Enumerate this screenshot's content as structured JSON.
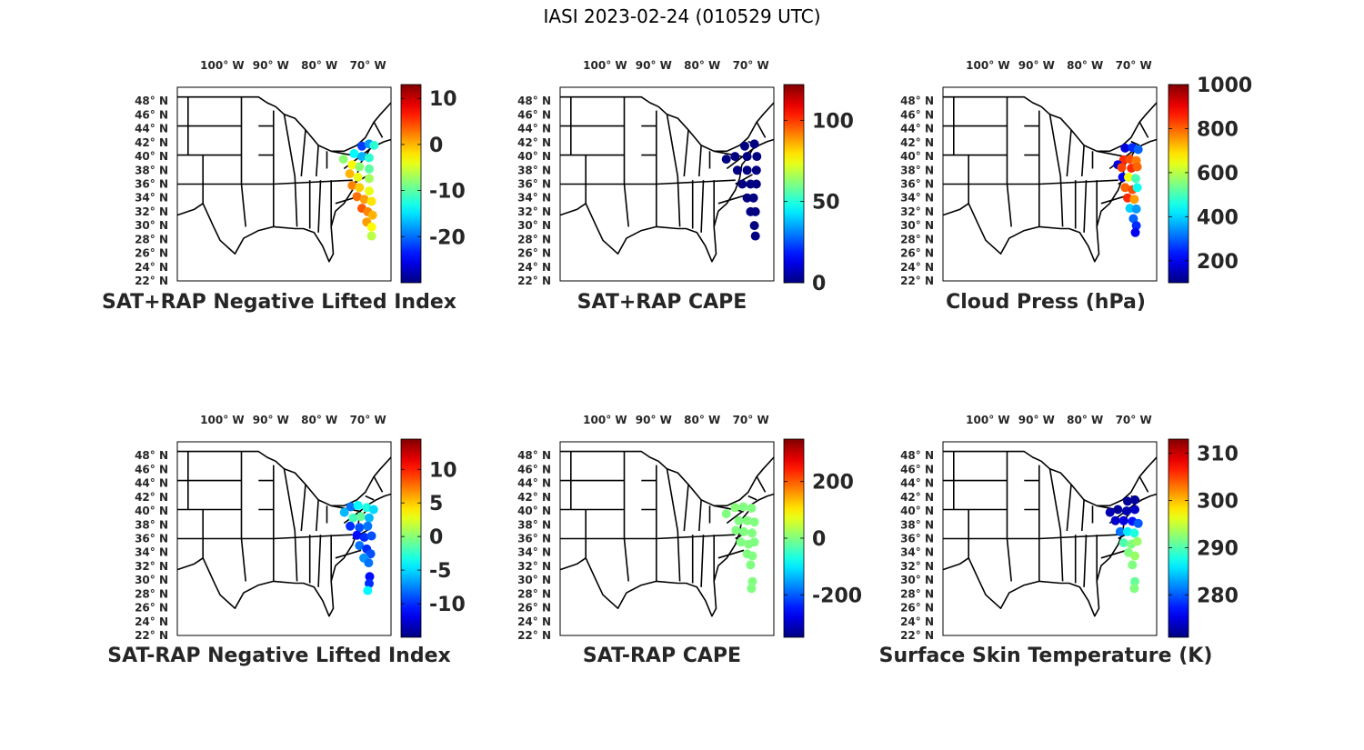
{
  "figure": {
    "title": "IASI 2023-02-24 (010529 UTC)"
  },
  "map": {
    "lon_ticks": [
      {
        "deg": "100",
        "dir": "W"
      },
      {
        "deg": "90",
        "dir": "W"
      },
      {
        "deg": "80",
        "dir": "W"
      },
      {
        "deg": "70",
        "dir": "W"
      }
    ],
    "lat_ticks": [
      {
        "deg": "48",
        "dir": "N"
      },
      {
        "deg": "46",
        "dir": "N"
      },
      {
        "deg": "44",
        "dir": "N"
      },
      {
        "deg": "42",
        "dir": "N"
      },
      {
        "deg": "40",
        "dir": "N"
      },
      {
        "deg": "38",
        "dir": "N"
      },
      {
        "deg": "36",
        "dir": "N"
      },
      {
        "deg": "34",
        "dir": "N"
      },
      {
        "deg": "32",
        "dir": "N"
      },
      {
        "deg": "30",
        "dir": "N"
      },
      {
        "deg": "28",
        "dir": "N"
      },
      {
        "deg": "26",
        "dir": "N"
      },
      {
        "deg": "24",
        "dir": "N"
      },
      {
        "deg": "22",
        "dir": "N"
      }
    ],
    "degree_symbol": "°"
  },
  "colors": {
    "colormap": "jet",
    "map_outline": "#000000",
    "text": "#262626"
  },
  "chart_data": [
    {
      "type": "scatter",
      "title": "SAT+RAP Negative Lifted Index",
      "colorbar": {
        "range": [
          -30,
          13
        ],
        "ticks": [
          "10",
          "0",
          "-10",
          "-20"
        ],
        "tick_values": [
          10,
          0,
          -10,
          -20
        ]
      },
      "points_summary": "swath off US east coast; values mostly -20 to 0",
      "points": [
        {
          "lon": -72,
          "lat": 41.5,
          "v": -22
        },
        {
          "lon": -70.5,
          "lat": 41.8,
          "v": -18
        },
        {
          "lon": -69.5,
          "lat": 41.6,
          "v": -12
        },
        {
          "lon": -73.6,
          "lat": 40.4,
          "v": -14
        },
        {
          "lon": -72,
          "lat": 40,
          "v": -17
        },
        {
          "lon": -70.5,
          "lat": 39.8,
          "v": -12
        },
        {
          "lon": -74,
          "lat": 38.8,
          "v": -3
        },
        {
          "lon": -72.5,
          "lat": 38.5,
          "v": -8
        },
        {
          "lon": -70.5,
          "lat": 38.2,
          "v": -10
        },
        {
          "lon": -74.5,
          "lat": 37.5,
          "v": 0
        },
        {
          "lon": -72.8,
          "lat": 37,
          "v": -4
        },
        {
          "lon": -70.5,
          "lat": 36.8,
          "v": -7
        },
        {
          "lon": -74,
          "lat": 35.8,
          "v": 2
        },
        {
          "lon": -72.5,
          "lat": 35.5,
          "v": -1
        },
        {
          "lon": -70.5,
          "lat": 35,
          "v": -4
        },
        {
          "lon": -73,
          "lat": 34.2,
          "v": 3
        },
        {
          "lon": -71.5,
          "lat": 33.8,
          "v": 1
        },
        {
          "lon": -70,
          "lat": 33.5,
          "v": -2
        },
        {
          "lon": -72,
          "lat": 32.5,
          "v": 4
        },
        {
          "lon": -70.8,
          "lat": 32,
          "v": 2
        },
        {
          "lon": -69.8,
          "lat": 31.5,
          "v": 0
        },
        {
          "lon": -71,
          "lat": 30.5,
          "v": 1
        },
        {
          "lon": -70,
          "lat": 29.8,
          "v": -3
        },
        {
          "lon": -70,
          "lat": 28.5,
          "v": -6
        },
        {
          "lon": -75.8,
          "lat": 39.6,
          "v": -8
        }
      ]
    },
    {
      "type": "scatter",
      "title": "SAT+RAP CAPE",
      "colorbar": {
        "range": [
          0,
          122
        ],
        "ticks": [
          "100",
          "50",
          "0"
        ],
        "tick_values": [
          100,
          50,
          0
        ]
      },
      "points_summary": "swath values near 0",
      "points": [
        {
          "lon": -72,
          "lat": 41.5,
          "v": 0
        },
        {
          "lon": -70,
          "lat": 41.8,
          "v": 0
        },
        {
          "lon": -74,
          "lat": 40,
          "v": 0
        },
        {
          "lon": -71.5,
          "lat": 40,
          "v": 0
        },
        {
          "lon": -69.5,
          "lat": 40,
          "v": 0
        },
        {
          "lon": -73.5,
          "lat": 38,
          "v": 0
        },
        {
          "lon": -71.5,
          "lat": 38,
          "v": 0
        },
        {
          "lon": -69.6,
          "lat": 38,
          "v": 0
        },
        {
          "lon": -72.5,
          "lat": 36,
          "v": 0
        },
        {
          "lon": -70.8,
          "lat": 36,
          "v": 0
        },
        {
          "lon": -69.6,
          "lat": 36,
          "v": 0
        },
        {
          "lon": -71.5,
          "lat": 34,
          "v": 0
        },
        {
          "lon": -70.2,
          "lat": 34,
          "v": 0
        },
        {
          "lon": -70.8,
          "lat": 32,
          "v": 0
        },
        {
          "lon": -69.8,
          "lat": 32,
          "v": 0
        },
        {
          "lon": -70,
          "lat": 30,
          "v": 0
        },
        {
          "lon": -69.8,
          "lat": 28.5,
          "v": 0
        },
        {
          "lon": -75.8,
          "lat": 39.6,
          "v": 0
        }
      ]
    },
    {
      "type": "scatter",
      "title": "Cloud Press (hPa)",
      "colorbar": {
        "range": [
          100,
          1000
        ],
        "ticks": [
          "1000",
          "800",
          "600",
          "400",
          "200"
        ],
        "tick_values": [
          1000,
          800,
          600,
          400,
          200
        ]
      },
      "points_summary": "cloudy points off coast; 200–850 hPa",
      "points": [
        {
          "lon": -72.5,
          "lat": 41.2,
          "v": 180
        },
        {
          "lon": -71,
          "lat": 41.3,
          "v": 250
        },
        {
          "lon": -69.8,
          "lat": 41,
          "v": 300
        },
        {
          "lon": -72.8,
          "lat": 39.5,
          "v": 850
        },
        {
          "lon": -71.5,
          "lat": 39.6,
          "v": 820
        },
        {
          "lon": -70.2,
          "lat": 39.4,
          "v": 780
        },
        {
          "lon": -74,
          "lat": 38.8,
          "v": 180
        },
        {
          "lon": -73.2,
          "lat": 38.4,
          "v": 830
        },
        {
          "lon": -71.2,
          "lat": 38.3,
          "v": 850
        },
        {
          "lon": -70,
          "lat": 38.5,
          "v": 800
        },
        {
          "lon": -73,
          "lat": 37,
          "v": 200
        },
        {
          "lon": -71.8,
          "lat": 37,
          "v": 650
        },
        {
          "lon": -70.3,
          "lat": 36.8,
          "v": 500
        },
        {
          "lon": -72.5,
          "lat": 35.5,
          "v": 800
        },
        {
          "lon": -71,
          "lat": 35.2,
          "v": 820
        },
        {
          "lon": -70,
          "lat": 35.5,
          "v": 450
        },
        {
          "lon": -72,
          "lat": 34,
          "v": 850
        },
        {
          "lon": -70.6,
          "lat": 33.8,
          "v": 750
        },
        {
          "lon": -71.5,
          "lat": 32.5,
          "v": 400
        },
        {
          "lon": -70.2,
          "lat": 32.4,
          "v": 350
        },
        {
          "lon": -70.8,
          "lat": 31,
          "v": 300
        },
        {
          "lon": -70.2,
          "lat": 30,
          "v": 250
        },
        {
          "lon": -70.4,
          "lat": 29,
          "v": 200
        }
      ]
    },
    {
      "type": "scatter",
      "title": "SAT-RAP Negative Lifted Index",
      "colorbar": {
        "range": [
          -15,
          14.5
        ],
        "ticks": [
          "10",
          "5",
          "0",
          "-5",
          "-10"
        ],
        "tick_values": [
          10,
          5,
          0,
          -5,
          -10
        ]
      },
      "points_summary": "differences mostly -10 to 0",
      "points": [
        {
          "lon": -74.3,
          "lat": 40.6,
          "v": -8
        },
        {
          "lon": -72.8,
          "lat": 40.8,
          "v": -4
        },
        {
          "lon": -71,
          "lat": 40.5,
          "v": -3
        },
        {
          "lon": -69.6,
          "lat": 40.2,
          "v": -5
        },
        {
          "lon": -73.8,
          "lat": 39,
          "v": -2
        },
        {
          "lon": -72.2,
          "lat": 39.2,
          "v": -1
        },
        {
          "lon": -70.5,
          "lat": 39,
          "v": -6
        },
        {
          "lon": -74.4,
          "lat": 37.8,
          "v": -10
        },
        {
          "lon": -72.5,
          "lat": 37.6,
          "v": -9
        },
        {
          "lon": -70.8,
          "lat": 37.8,
          "v": -8
        },
        {
          "lon": -73,
          "lat": 36.5,
          "v": -11
        },
        {
          "lon": -71.5,
          "lat": 36.2,
          "v": -10
        },
        {
          "lon": -70,
          "lat": 36.4,
          "v": -9
        },
        {
          "lon": -72.5,
          "lat": 35,
          "v": -8
        },
        {
          "lon": -71,
          "lat": 34.5,
          "v": -10
        },
        {
          "lon": -70.2,
          "lat": 33.8,
          "v": -9
        },
        {
          "lon": -71.6,
          "lat": 33.2,
          "v": -7
        },
        {
          "lon": -70.6,
          "lat": 32.5,
          "v": -8
        },
        {
          "lon": -70.4,
          "lat": 30.5,
          "v": -11
        },
        {
          "lon": -70.5,
          "lat": 29.5,
          "v": -10
        },
        {
          "lon": -70.8,
          "lat": 28.5,
          "v": -4
        },
        {
          "lon": -75.6,
          "lat": 39.8,
          "v": -6
        }
      ]
    },
    {
      "type": "scatter",
      "title": "SAT-RAP CAPE",
      "colorbar": {
        "range": [
          -350,
          350
        ],
        "ticks": [
          "200",
          "0",
          "-200"
        ],
        "tick_values": [
          200,
          0,
          -200
        ]
      },
      "points_summary": "differences near 0",
      "points": [
        {
          "lon": -74,
          "lat": 40.5,
          "v": 5
        },
        {
          "lon": -72.3,
          "lat": 40.6,
          "v": 0
        },
        {
          "lon": -70.6,
          "lat": 40.4,
          "v": 0
        },
        {
          "lon": -73.2,
          "lat": 38.6,
          "v": 0
        },
        {
          "lon": -71.5,
          "lat": 38.6,
          "v": 0
        },
        {
          "lon": -70,
          "lat": 38.4,
          "v": 0
        },
        {
          "lon": -73.8,
          "lat": 37.2,
          "v": 0
        },
        {
          "lon": -72.2,
          "lat": 37,
          "v": 0
        },
        {
          "lon": -70.5,
          "lat": 36.8,
          "v": 0
        },
        {
          "lon": -72.8,
          "lat": 35.5,
          "v": 0
        },
        {
          "lon": -71.2,
          "lat": 35.2,
          "v": 0
        },
        {
          "lon": -70,
          "lat": 35.5,
          "v": 0
        },
        {
          "lon": -71.5,
          "lat": 33.8,
          "v": 0
        },
        {
          "lon": -70.4,
          "lat": 33.5,
          "v": 0
        },
        {
          "lon": -70.8,
          "lat": 32.2,
          "v": 0
        },
        {
          "lon": -70.4,
          "lat": 29.8,
          "v": 0
        },
        {
          "lon": -70.6,
          "lat": 28.8,
          "v": 0
        },
        {
          "lon": -75.8,
          "lat": 39.6,
          "v": 0
        }
      ]
    },
    {
      "type": "scatter",
      "title": "Surface Skin Temperature (K)",
      "colorbar": {
        "range": [
          271,
          313
        ],
        "ticks": [
          "310",
          "300",
          "290",
          "280"
        ],
        "tick_values": [
          310,
          300,
          290,
          280
        ]
      },
      "points_summary": "cold (~272 K) near coast in north, ~292 K in south",
      "points": [
        {
          "lon": -72,
          "lat": 41.4,
          "v": 272
        },
        {
          "lon": -70.5,
          "lat": 41.6,
          "v": 272
        },
        {
          "lon": -74,
          "lat": 40.2,
          "v": 272
        },
        {
          "lon": -72.2,
          "lat": 40,
          "v": 273
        },
        {
          "lon": -70.5,
          "lat": 40.2,
          "v": 274
        },
        {
          "lon": -74.5,
          "lat": 38.6,
          "v": 274
        },
        {
          "lon": -72.8,
          "lat": 38.6,
          "v": 275
        },
        {
          "lon": -71,
          "lat": 38.5,
          "v": 277
        },
        {
          "lon": -69.8,
          "lat": 38.2,
          "v": 280
        },
        {
          "lon": -73.5,
          "lat": 37,
          "v": 281
        },
        {
          "lon": -72,
          "lat": 37,
          "v": 286
        },
        {
          "lon": -70.6,
          "lat": 36.8,
          "v": 288
        },
        {
          "lon": -72.8,
          "lat": 35.4,
          "v": 290
        },
        {
          "lon": -71.2,
          "lat": 35.2,
          "v": 292
        },
        {
          "lon": -70,
          "lat": 35.6,
          "v": 293
        },
        {
          "lon": -71.8,
          "lat": 34,
          "v": 292
        },
        {
          "lon": -70.5,
          "lat": 33.5,
          "v": 293
        },
        {
          "lon": -71,
          "lat": 32.2,
          "v": 292
        },
        {
          "lon": -70.5,
          "lat": 29.8,
          "v": 291
        },
        {
          "lon": -70.6,
          "lat": 28.8,
          "v": 292
        },
        {
          "lon": -75.6,
          "lat": 39.8,
          "v": 273
        }
      ]
    }
  ]
}
